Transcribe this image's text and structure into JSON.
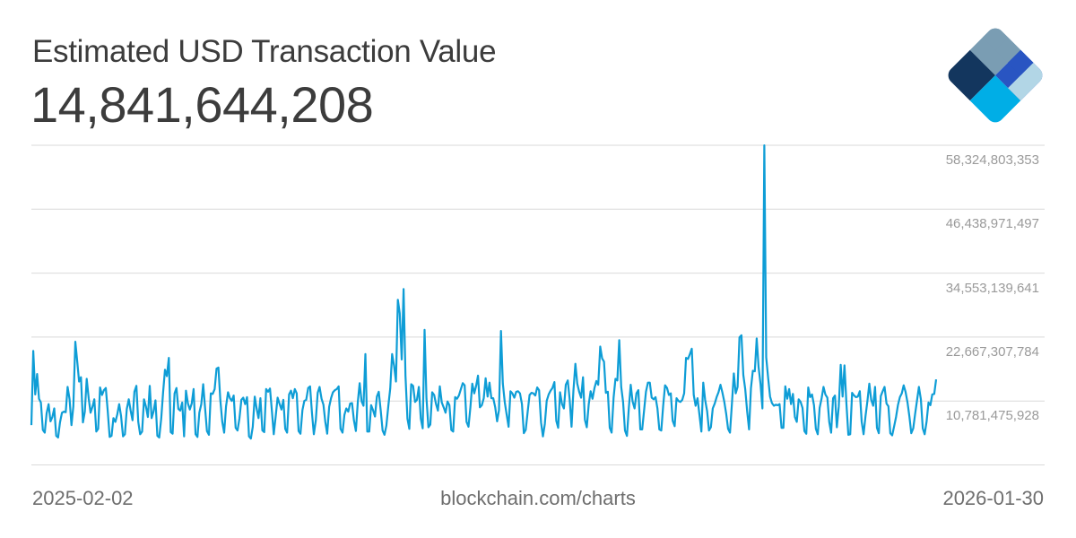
{
  "header": {
    "title": "Estimated USD Transaction Value",
    "current_value": "14,841,644,208"
  },
  "logo": {
    "name": "blockchain-logo",
    "colors": [
      "#7a9db3",
      "#13365e",
      "#2955c2",
      "#b2d6e6",
      "#00aee6"
    ]
  },
  "footer": {
    "start_date": "2025-02-02",
    "source": "blockchain.com/charts",
    "end_date": "2026-01-30"
  },
  "colors": {
    "line": "#0e9dd6",
    "grid": "#d9d9d9",
    "axis_text": "#9a9a9a"
  },
  "chart_data": {
    "type": "line",
    "title": "Estimated USD Transaction Value",
    "xlabel": "",
    "ylabel": "USD",
    "x_range": [
      "2025-02-02",
      "2026-01-30"
    ],
    "y_ticks": [
      "58,324,803,353",
      "46,438,971,497",
      "34,553,139,641",
      "22,667,307,784",
      "10,781,475,928"
    ],
    "ylim": [
      -1104355928,
      58324803353
    ],
    "grid": true,
    "legend": "none",
    "latest_value": 14841644208,
    "series": [
      {
        "name": "Estimated USD Transaction Value",
        "values_billions": [
          6.3,
          20.1,
          12.0,
          15.8,
          11.2,
          10.5,
          5.4,
          4.9,
          8.5,
          10.2,
          7.0,
          7.8,
          9.4,
          4.3,
          4.0,
          6.8,
          8.6,
          8.8,
          8.7,
          13.4,
          11.1,
          6.3,
          9.8,
          21.8,
          18.2,
          14.4,
          15.2,
          6.8,
          8.8,
          14.9,
          11.3,
          8.6,
          9.7,
          11.1,
          5.1,
          5.6,
          13.3,
          11.9,
          12.8,
          13.2,
          9.0,
          4.1,
          4.3,
          7.6,
          6.9,
          8.3,
          10.2,
          8.0,
          4.2,
          4.6,
          9.3,
          11.1,
          9.0,
          7.2,
          12.5,
          13.6,
          6.9,
          4.6,
          5.1,
          11.1,
          9.8,
          7.8,
          13.6,
          7.6,
          8.8,
          10.9,
          4.3,
          4.0,
          7.5,
          12.4,
          16.6,
          15.4,
          18.8,
          5.0,
          4.7,
          12.2,
          13.2,
          9.3,
          9.0,
          10.5,
          4.2,
          12.7,
          10.3,
          9.2,
          10.3,
          13.0,
          4.6,
          4.1,
          8.6,
          10.2,
          13.9,
          9.5,
          5.2,
          4.5,
          12.2,
          12.1,
          13.0,
          16.8,
          17.0,
          11.0,
          6.9,
          4.9,
          9.8,
          12.4,
          11.3,
          10.8,
          11.8,
          5.8,
          5.3,
          7.5,
          11.0,
          11.4,
          10.2,
          11.5,
          4.2,
          3.8,
          6.0,
          11.6,
          9.4,
          7.6,
          11.3,
          5.3,
          5.0,
          13.0,
          12.5,
          13.1,
          9.0,
          4.6,
          8.0,
          11.4,
          10.3,
          9.2,
          11.0,
          5.6,
          4.9,
          12.0,
          12.7,
          11.3,
          13.0,
          12.2,
          5.2,
          4.7,
          9.1,
          10.8,
          11.0,
          13.2,
          13.5,
          8.6,
          4.6,
          7.2,
          12.3,
          13.4,
          11.2,
          10.1,
          6.9,
          4.7,
          9.7,
          11.3,
          12.4,
          12.8,
          13.0,
          13.5,
          5.6,
          4.9,
          8.2,
          9.4,
          8.8,
          10.3,
          10.4,
          7.2,
          5.2,
          10.5,
          14.1,
          10.7,
          9.9,
          19.5,
          5.1,
          5.1,
          10.0,
          9.1,
          7.9,
          11.6,
          12.5,
          9.0,
          5.3,
          4.5,
          6.2,
          9.9,
          13.1,
          19.5,
          17.3,
          14.4,
          29.6,
          27.1,
          18.5,
          31.6,
          15.5,
          7.5,
          5.6,
          13.9,
          13.6,
          10.6,
          11.0,
          13.4,
          7.5,
          5.7,
          24.0,
          11.3,
          5.9,
          6.4,
          12.4,
          11.9,
          10.2,
          9.0,
          13.5,
          10.5,
          9.6,
          8.6,
          10.7,
          10.0,
          5.4,
          5.1,
          11.5,
          11.2,
          11.8,
          13.0,
          14.1,
          13.7,
          6.9,
          6.0,
          9.6,
          14.0,
          12.2,
          13.6,
          15.5,
          9.6,
          10.0,
          11.3,
          15.0,
          11.6,
          14.2,
          11.3,
          11.3,
          9.6,
          7.0,
          9.1,
          23.8,
          14.0,
          10.6,
          8.3,
          6.0,
          12.6,
          12.2,
          11.4,
          12.5,
          12.6,
          12.2,
          10.2,
          4.8,
          5.4,
          8.8,
          11.9,
          12.3,
          12.2,
          11.8,
          13.3,
          12.8,
          6.8,
          4.2,
          6.5,
          10.8,
          12.0,
          12.7,
          13.2,
          14.3,
          7.1,
          5.8,
          12.4,
          10.2,
          9.4,
          13.8,
          14.6,
          11.1,
          6.0,
          12.7,
          17.7,
          14.0,
          12.5,
          11.4,
          15.2,
          7.3,
          5.9,
          10.2,
          12.6,
          11.2,
          13.2,
          14.5,
          13.8,
          20.9,
          18.7,
          18.1,
          12.3,
          12.5,
          5.8,
          4.9,
          11.4,
          14.9,
          14.6,
          22.1,
          13.4,
          10.6,
          5.3,
          4.3,
          9.5,
          13.8,
          10.7,
          9.4,
          12.2,
          12.8,
          5.5,
          5.5,
          9.0,
          12.5,
          14.2,
          14.2,
          11.4,
          11.1,
          11.5,
          9.4,
          5.5,
          5.3,
          9.9,
          13.7,
          13.2,
          11.9,
          12.2,
          7.1,
          6.1,
          11.3,
          10.8,
          10.6,
          11.0,
          12.2,
          18.8,
          18.6,
          19.5,
          20.5,
          11.9,
          9.9,
          11.3,
          8.3,
          5.1,
          14.2,
          11.0,
          8.9,
          5.3,
          5.9,
          9.4,
          10.3,
          11.5,
          12.4,
          13.8,
          12.4,
          10.7,
          8.5,
          5.6,
          4.9,
          10.1,
          15.9,
          12.2,
          13.4,
          22.6,
          23.0,
          15.6,
          13.0,
          8.8,
          5.5,
          13.2,
          16.4,
          16.3,
          22.4,
          17.1,
          13.9,
          9.4,
          58.3,
          18.9,
          15.0,
          11.6,
          10.4,
          9.9,
          10.1,
          10.0,
          10.2,
          5.8,
          5.8,
          13.5,
          11.2,
          13.0,
          10.2,
          12.1,
          7.8,
          6.9,
          11.1,
          10.6,
          9.5,
          5.2,
          4.7,
          13.3,
          11.5,
          12.0,
          10.0,
          5.6,
          4.6,
          9.5,
          11.3,
          13.4,
          12.0,
          11.4,
          6.9,
          4.9,
          11.3,
          11.8,
          5.9,
          9.7,
          17.5,
          11.6,
          17.4,
          10.2,
          4.5,
          4.6,
          12.3,
          11.8,
          11.5,
          11.6,
          12.6,
          6.9,
          4.6,
          7.9,
          10.8,
          14.0,
          11.0,
          9.9,
          13.4,
          5.8,
          4.8,
          11.7,
          12.6,
          13.4,
          10.3,
          9.8,
          4.8,
          4.4,
          6.1,
          7.8,
          10.0,
          11.5,
          12.2,
          13.7,
          12.5,
          10.5,
          7.9,
          4.8,
          5.7,
          8.4,
          10.9,
          13.4,
          11.1,
          5.7,
          4.6,
          7.0,
          10.5,
          10.0,
          12.0,
          12.1,
          14.8
        ]
      }
    ]
  }
}
